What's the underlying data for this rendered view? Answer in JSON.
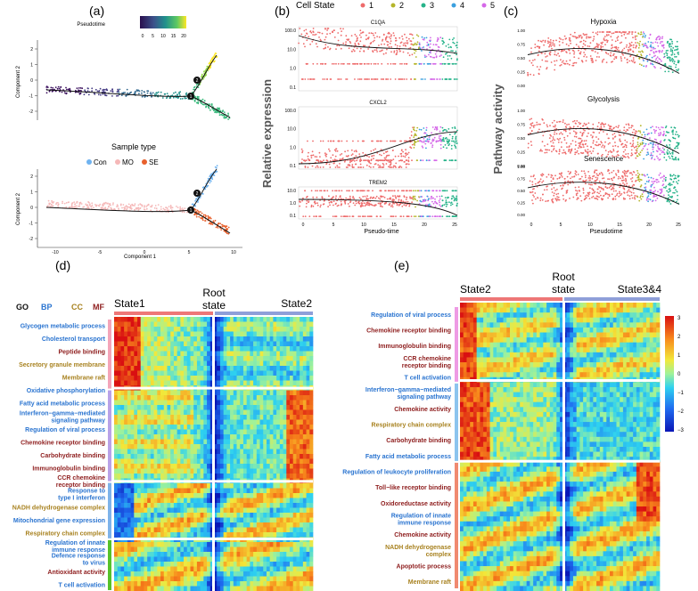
{
  "colors": {
    "state1": "#ee6b6b",
    "state2": "#b5b52a",
    "state3": "#27b38a",
    "state4": "#3ba0df",
    "state5": "#d568e8",
    "go_bp": "#2a74d0",
    "go_cc": "#a88220",
    "go_mf": "#8e1d1d",
    "con": "#6fb3f0",
    "mo": "#f5b8b8",
    "se": "#e8602c",
    "bar_state": "#ee7777",
    "bar_root": "#8f9fd9",
    "grp_pink": "#f4a5b9",
    "grp_purple": "#b9a2e8",
    "grp_blue": "#7eb3ea",
    "grp_green": "#56c22a",
    "grp_orange": "#f08a70",
    "grp_lightblue": "#8cc4ee",
    "grp_magenta": "#ee9be4"
  },
  "panel_a": {
    "label": "(a)",
    "pseudotime_legend": "Pseudotime",
    "pseudotime_ticks": [
      "0",
      "5",
      "10",
      "15",
      "20"
    ],
    "sample_type_title": "Sample type",
    "sample_types": [
      "Con",
      "MO",
      "SE"
    ],
    "ylabel": "Component 2",
    "xlabel": "Component 1",
    "xticks": [
      "-10",
      "-5",
      "0",
      "5",
      "10"
    ],
    "yticks": [
      "2",
      "1",
      "0",
      "-1",
      "-2"
    ],
    "branch_labels": [
      "2",
      "1"
    ]
  },
  "panel_b": {
    "label": "(b)",
    "legend_title": "Cell State",
    "states": [
      "1",
      "2",
      "3",
      "4",
      "5"
    ],
    "ylabel": "Relative expression",
    "xlabel": "Pseudo-time",
    "xticks": [
      "0",
      "5",
      "10",
      "15",
      "20",
      "25"
    ],
    "genes": [
      {
        "name": "C1QA",
        "yticks": [
          "100.0",
          "10.0",
          "1.0",
          "0.1"
        ]
      },
      {
        "name": "CXCL2",
        "yticks": [
          "100.0",
          "10.0",
          "1.0",
          "0.1"
        ]
      },
      {
        "name": "TREM2",
        "yticks": [
          "10.0",
          "1.0",
          "0.1"
        ]
      }
    ]
  },
  "panel_c": {
    "label": "(c)",
    "ylabel": "Pathway activity",
    "xlabel": "Pseudotime",
    "xticks": [
      "0",
      "5",
      "10",
      "15",
      "20",
      "25"
    ],
    "pathways": [
      {
        "name": "Hypoxia",
        "yticks": [
          "1.00",
          "0.75",
          "0.50",
          "0.25",
          "0.00"
        ]
      },
      {
        "name": "Glycolysis",
        "yticks": [
          "1.00",
          "0.75",
          "0.50",
          "0.25",
          "0.00"
        ]
      },
      {
        "name": "Senescence",
        "yticks": [
          "1.00",
          "0.75",
          "0.50",
          "0.25",
          "0.00"
        ]
      }
    ]
  },
  "panel_d": {
    "label": "(d)",
    "legend": [
      "GO",
      "BP",
      "CC",
      "MF"
    ],
    "header_left": "State1",
    "header_mid": "Root\nstate",
    "header_right": "State2",
    "terms": [
      {
        "text": "Glycogen metabolic process",
        "cat": "BP"
      },
      {
        "text": "Cholesterol transport",
        "cat": "BP"
      },
      {
        "text": "Peptide binding",
        "cat": "MF"
      },
      {
        "text": "Secretory granule membrane",
        "cat": "CC"
      },
      {
        "text": "Membrane raft",
        "cat": "CC"
      },
      {
        "text": "Oxidative phosphorylation",
        "cat": "BP"
      },
      {
        "text": "Fatty acid metabolic process",
        "cat": "BP"
      },
      {
        "text": "Interferon−gamma−mediated\nsignaling pathway",
        "cat": "BP"
      },
      {
        "text": "Regulation of viral process",
        "cat": "BP"
      },
      {
        "text": "Chemokine receptor binding",
        "cat": "MF"
      },
      {
        "text": "Carbohydrate binding",
        "cat": "MF"
      },
      {
        "text": "Immunoglobulin binding",
        "cat": "MF"
      },
      {
        "text": "CCR chemokine\nreceptor binding",
        "cat": "MF"
      },
      {
        "text": "Response to\ntype I interferon",
        "cat": "BP"
      },
      {
        "text": "NADH dehydrogenase complex",
        "cat": "CC"
      },
      {
        "text": "Mitochondrial gene expression",
        "cat": "BP"
      },
      {
        "text": "Respiratory chain complex",
        "cat": "CC"
      },
      {
        "text": "Regulation of innate\nimmune response",
        "cat": "BP"
      },
      {
        "text": "Defence  response\nto virus",
        "cat": "BP"
      },
      {
        "text": "Antioxidant activity",
        "cat": "MF"
      },
      {
        "text": "T cell activation",
        "cat": "BP"
      }
    ]
  },
  "panel_e": {
    "label": "(e)",
    "header_left": "State2",
    "header_mid": "Root\nstate",
    "header_right": "State3&4",
    "colorbar_ticks": [
      "3",
      "2",
      "1",
      "0",
      "−1",
      "−2",
      "−3"
    ],
    "terms": [
      {
        "text": "Regulation of viral process",
        "cat": "BP"
      },
      {
        "text": "Chemokine receptor binding",
        "cat": "MF"
      },
      {
        "text": "Immunoglobulin binding",
        "cat": "MF"
      },
      {
        "text": "CCR chemokine\nreceptor binding",
        "cat": "MF"
      },
      {
        "text": "T cell activation",
        "cat": "BP"
      },
      {
        "text": "Interferon−gamma−mediated\nsignaling pathway",
        "cat": "BP"
      },
      {
        "text": "Chemokine activity",
        "cat": "MF"
      },
      {
        "text": "Respiratory chain complex",
        "cat": "CC"
      },
      {
        "text": "Carbohydrate binding",
        "cat": "MF"
      },
      {
        "text": "Fatty acid metabolic process",
        "cat": "BP"
      },
      {
        "text": "Regulation of leukocyte proliferation",
        "cat": "BP"
      },
      {
        "text": "Toll−like receptor binding",
        "cat": "MF"
      },
      {
        "text": "Oxidoreductase activity",
        "cat": "MF"
      },
      {
        "text": "Regulation of innate\nimmune response",
        "cat": "BP"
      },
      {
        "text": "Chemokine activity",
        "cat": "MF"
      },
      {
        "text": "NADH dehydrogenase\ncomplex",
        "cat": "CC"
      },
      {
        "text": "Apoptotic process",
        "cat": "MF"
      },
      {
        "text": "Membrane raft",
        "cat": "CC"
      }
    ]
  }
}
